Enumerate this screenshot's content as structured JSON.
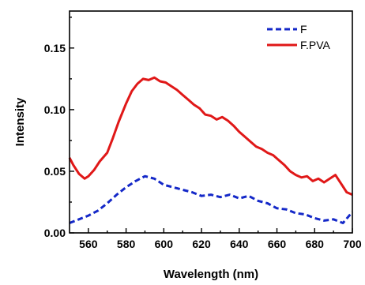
{
  "chart_data": {
    "type": "line",
    "xlabel": "Wavelength (nm)",
    "ylabel": "Intensity",
    "xlim": [
      550,
      700
    ],
    "ylim": [
      0.0,
      0.18
    ],
    "x_ticks": [
      "560",
      "580",
      "600",
      "620",
      "640",
      "660",
      "680",
      "700"
    ],
    "y_ticks": [
      "0.00",
      "0.05",
      "0.10",
      "0.15"
    ],
    "grid": false,
    "legend_position": "top-right",
    "series": [
      {
        "name": "F",
        "color": "#1428c8",
        "style": "dashed",
        "x": [
          550,
          555,
          560,
          565,
          570,
          575,
          580,
          585,
          590,
          595,
          600,
          605,
          610,
          615,
          620,
          625,
          630,
          635,
          640,
          645,
          650,
          655,
          660,
          665,
          670,
          675,
          680,
          685,
          690,
          695,
          700
        ],
        "y": [
          0.008,
          0.011,
          0.014,
          0.018,
          0.024,
          0.031,
          0.037,
          0.042,
          0.046,
          0.044,
          0.039,
          0.037,
          0.035,
          0.033,
          0.03,
          0.031,
          0.029,
          0.031,
          0.028,
          0.03,
          0.026,
          0.024,
          0.02,
          0.019,
          0.016,
          0.015,
          0.012,
          0.01,
          0.011,
          0.008,
          0.017
        ]
      },
      {
        "name": "F.PVA",
        "color": "#e01818",
        "style": "solid",
        "x": [
          550,
          552,
          555,
          558,
          560,
          563,
          566,
          570,
          573,
          576,
          580,
          583,
          586,
          589,
          592,
          595,
          598,
          601,
          604,
          607,
          610,
          613,
          616,
          619,
          622,
          625,
          628,
          631,
          634,
          637,
          640,
          643,
          646,
          649,
          652,
          655,
          658,
          661,
          664,
          667,
          670,
          673,
          676,
          679,
          682,
          685,
          688,
          691,
          694,
          697,
          700
        ],
        "y": [
          0.061,
          0.055,
          0.048,
          0.044,
          0.046,
          0.051,
          0.058,
          0.065,
          0.077,
          0.09,
          0.105,
          0.115,
          0.121,
          0.125,
          0.124,
          0.126,
          0.123,
          0.122,
          0.119,
          0.116,
          0.112,
          0.108,
          0.104,
          0.101,
          0.096,
          0.095,
          0.092,
          0.094,
          0.091,
          0.087,
          0.082,
          0.078,
          0.074,
          0.07,
          0.068,
          0.065,
          0.063,
          0.059,
          0.055,
          0.05,
          0.047,
          0.045,
          0.046,
          0.042,
          0.044,
          0.041,
          0.044,
          0.047,
          0.04,
          0.033,
          0.031
        ]
      }
    ]
  }
}
